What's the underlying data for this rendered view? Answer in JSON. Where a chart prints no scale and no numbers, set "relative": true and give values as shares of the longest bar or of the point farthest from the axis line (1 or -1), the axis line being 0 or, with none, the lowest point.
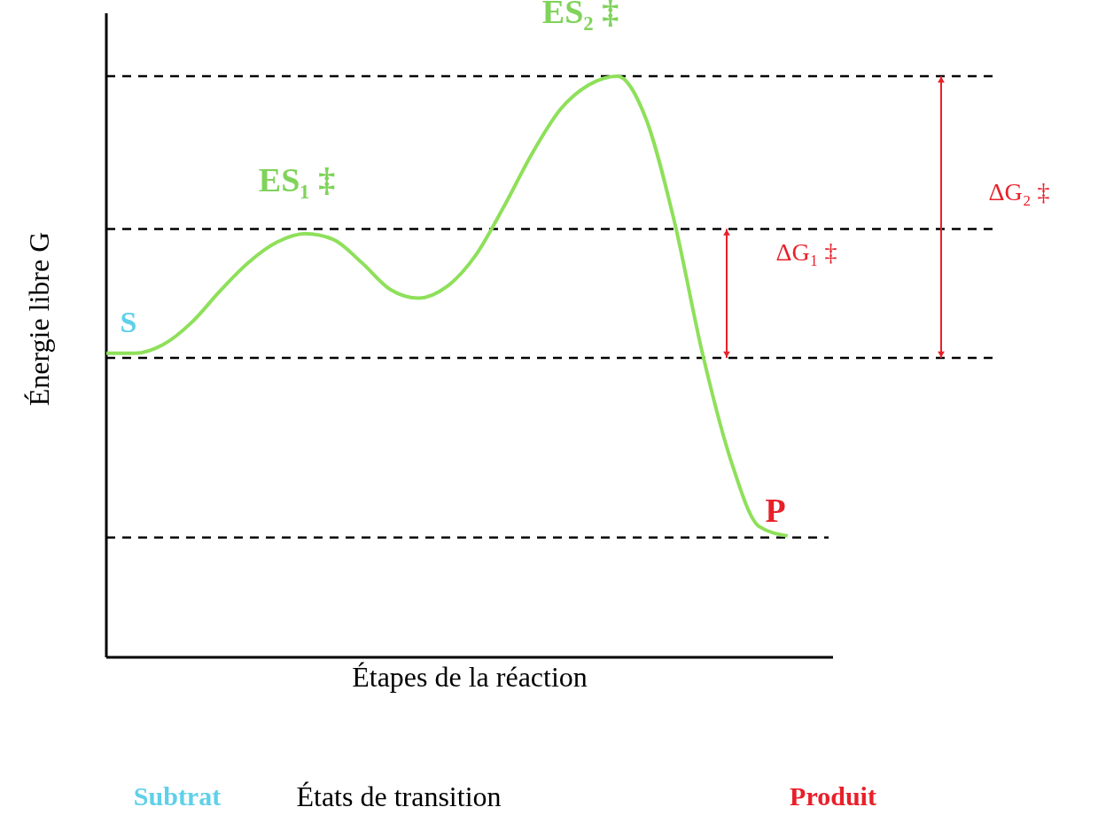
{
  "chart_data": {
    "type": "line",
    "relative": true,
    "xlabel": "Étapes de la réaction",
    "ylabel": "Énergie libre G",
    "categories": [
      null,
      null,
      null,
      null,
      null,
      null,
      null,
      null,
      null,
      null,
      null,
      null,
      null,
      null,
      null,
      null,
      null,
      null,
      null,
      null,
      null,
      null,
      null,
      null,
      null
    ],
    "series": [
      {
        "color": "#8ee05a",
        "values": [
          0.523,
          0.523,
          0.538,
          0.576,
          0.63,
          0.679,
          0.714,
          0.729,
          0.719,
          0.679,
          0.633,
          0.618,
          0.638,
          0.691,
          0.775,
          0.867,
          0.943,
          0.985,
          1.0,
          0.928,
          0.752,
          0.523,
          0.339,
          0.225,
          0.209
        ]
      }
    ],
    "ref_lines": [
      {
        "axis": "y",
        "value": 1.0,
        "color": "#000000",
        "line_style": "dashed"
      },
      {
        "axis": "y",
        "value": 0.737,
        "color": "#000000",
        "line_style": "dashed"
      },
      {
        "axis": "y",
        "value": 0.515,
        "color": "#000000",
        "line_style": "dashed"
      },
      {
        "axis": "y",
        "value": 0.206,
        "color": "#000000",
        "line_style": "dashed"
      }
    ],
    "annotations": [
      "S",
      "ES₁ ‡",
      "ES₂ ‡",
      "P",
      "ΔG₁ ‡",
      "ΔG₂ ‡",
      "Subtrat",
      "États de transition",
      "Produit"
    ],
    "marker": "none",
    "line_style": "solid"
  }
}
